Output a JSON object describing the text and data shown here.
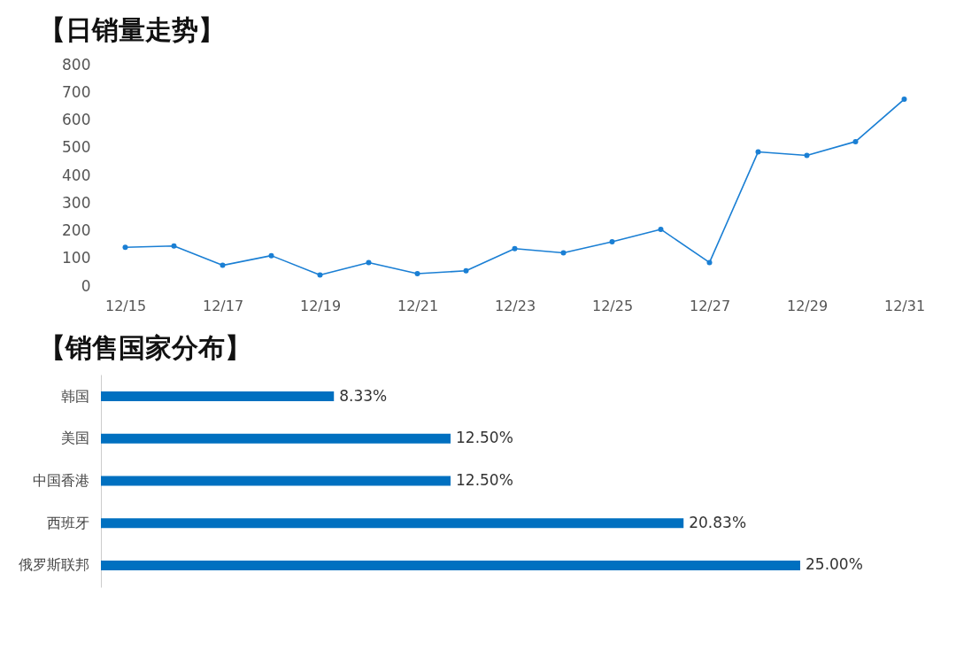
{
  "chart_data": [
    {
      "type": "line",
      "title": "【日销量走势】",
      "categories": [
        "12/15",
        null,
        "12/17",
        null,
        "12/19",
        null,
        "12/21",
        null,
        "12/23",
        null,
        "12/25",
        null,
        "12/27",
        null,
        "12/29",
        null,
        "12/31"
      ],
      "series": [
        {
          "color": "#1a7fd4",
          "values": [
            140,
            145,
            75,
            110,
            40,
            85,
            45,
            55,
            135,
            120,
            160,
            205,
            85,
            485,
            472,
            522,
            675
          ]
        }
      ],
      "ylim": [
        0,
        800
      ],
      "yticks": [
        0,
        100,
        200,
        300,
        400,
        500,
        600,
        700,
        800
      ],
      "grid": false,
      "legend": false,
      "marker": "circle",
      "line_style": "solid"
    },
    {
      "type": "bar",
      "orientation": "horizontal",
      "title": "【销售国家分布】",
      "categories": [
        "韩国",
        "美国",
        "中国香港",
        "西班牙",
        "俄罗斯联邦"
      ],
      "values": [
        8.33,
        12.5,
        12.5,
        20.83,
        25.0
      ],
      "color": "#0070c0",
      "value_labels": [
        "8.33%",
        "12.50%",
        "12.50%",
        "20.83%",
        "25.00%"
      ]
    }
  ]
}
